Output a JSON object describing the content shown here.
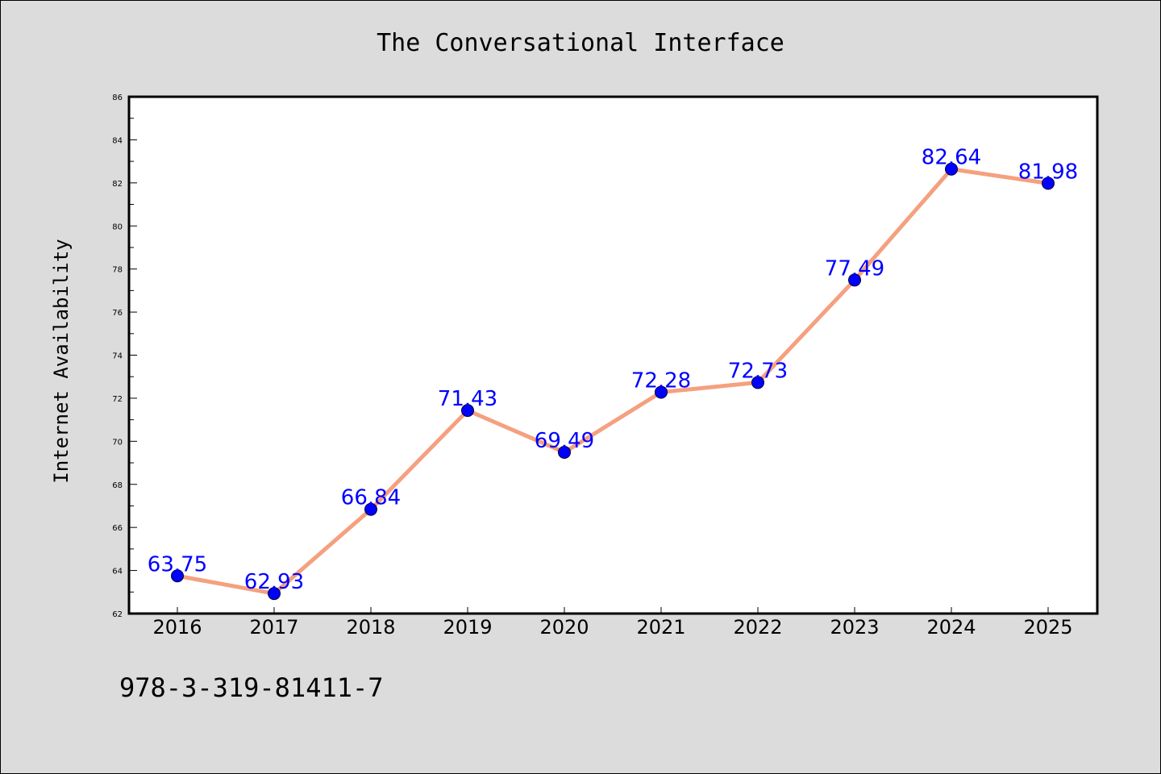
{
  "chart_data": {
    "type": "line",
    "title": "The Conversational Interface",
    "xlabel": "",
    "ylabel": "Internet Availability",
    "categories": [
      "2016",
      "2017",
      "2018",
      "2019",
      "2020",
      "2021",
      "2022",
      "2023",
      "2024",
      "2025"
    ],
    "values": [
      63.75,
      62.93,
      66.84,
      71.43,
      69.49,
      72.28,
      72.73,
      77.49,
      82.64,
      81.98
    ],
    "data_labels": [
      "63.75",
      "62.93",
      "66.84",
      "71.43",
      "69.49",
      "72.28",
      "72.73",
      "77.49",
      "82.64",
      "81.98"
    ],
    "ylim": [
      62,
      86
    ],
    "yticks": [
      "62",
      "64",
      "66",
      "68",
      "70",
      "72",
      "74",
      "76",
      "78",
      "80",
      "82",
      "84",
      "86"
    ],
    "grid": false,
    "legend": "none",
    "colors": {
      "line": "#f5a07f",
      "marker": "#0000ff",
      "data_label": "#0000ff",
      "plot_background": "#ffffff",
      "page_background": "#dcdcdc"
    }
  },
  "footer": {
    "isbn": "978-3-319-81411-7"
  }
}
